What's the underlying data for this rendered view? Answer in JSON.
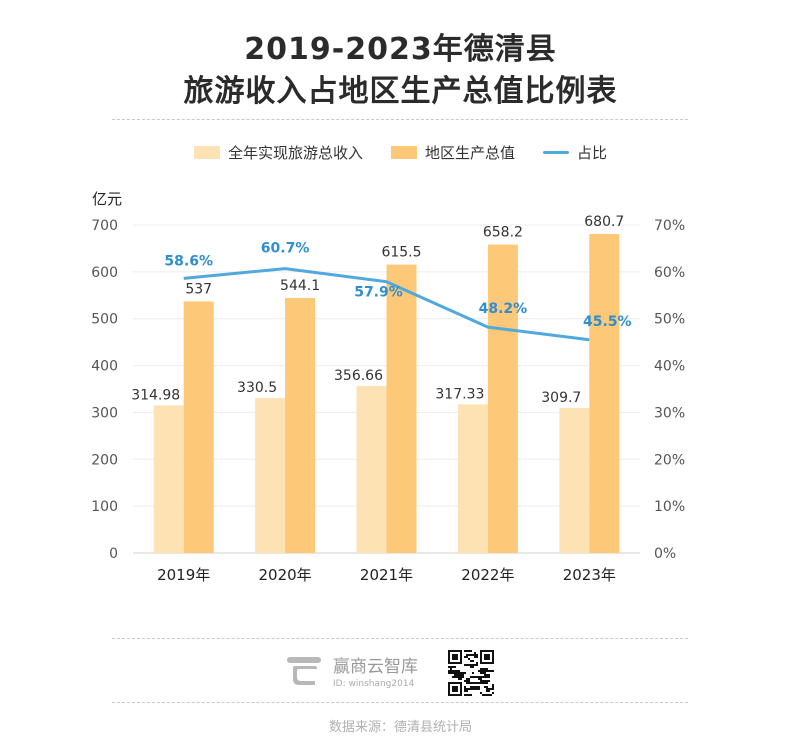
{
  "title_line1": "2019-2023年德清县",
  "title_line2": "旅游收入占地区生产总值比例表",
  "legend": {
    "revenue": "全年实现旅游总收入",
    "gdp": "地区生产总值",
    "ratio": "占比"
  },
  "unit_label": "亿元",
  "colors": {
    "revenue": "#FDE3B4",
    "gdp": "#FDC877",
    "ratio": "#4FA9DC",
    "ratio_label": "#2F8ECF"
  },
  "chart_data": {
    "type": "bar",
    "categories": [
      "2019年",
      "2020年",
      "2021年",
      "2022年",
      "2023年"
    ],
    "series": [
      {
        "name": "全年实现旅游总收入",
        "type": "bar",
        "values": [
          314.98,
          330.5,
          356.66,
          317.33,
          309.7
        ],
        "labels": [
          "314.98",
          "330.5",
          "356.66",
          "317.33",
          "309.7"
        ]
      },
      {
        "name": "地区生产总值",
        "type": "bar",
        "values": [
          537,
          544.1,
          615.5,
          658.2,
          680.7
        ],
        "labels": [
          "537",
          "544.1",
          "615.5",
          "658.2",
          "680.7"
        ]
      },
      {
        "name": "占比",
        "type": "line",
        "axis": "right",
        "values": [
          58.6,
          60.7,
          57.9,
          48.2,
          45.5
        ],
        "labels": [
          "58.6%",
          "60.7%",
          "57.9%",
          "48.2%",
          "45.5%"
        ]
      }
    ],
    "ylim": [
      0,
      700
    ],
    "y_ticks": [
      "0",
      "100",
      "200",
      "300",
      "400",
      "500",
      "600",
      "700"
    ],
    "y2lim": [
      0,
      70
    ],
    "y2_ticks": [
      "0%",
      "10%",
      "20%",
      "30%",
      "40%",
      "50%",
      "60%",
      "70%"
    ],
    "grid": true,
    "legend_position": "top"
  },
  "brand": {
    "name": "赢商云智库",
    "id": "ID: winshang2014"
  },
  "source": "数据来源：德清县统计局"
}
